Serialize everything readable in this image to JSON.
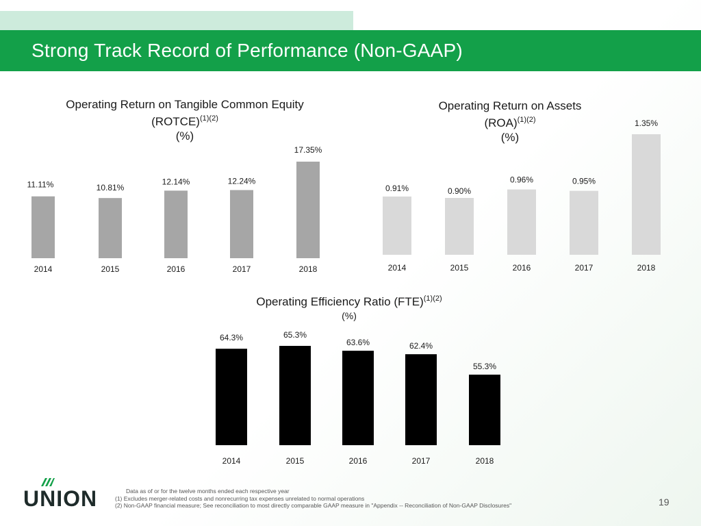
{
  "slide_title": "Strong Track Record of Performance (Non-GAAP)",
  "colors": {
    "title_bar": "#13a049",
    "rotce_bar": "#a6a6a6",
    "roa_bar": "#d9d9d9",
    "efficiency_bar": "#000000"
  },
  "chart_data": [
    {
      "type": "bar",
      "title_line1": "Operating Return on Tangible Common Equity",
      "title_line2": "(ROTCE)",
      "title_sup": "(1)(2)",
      "unit_label": "(%)",
      "categories": [
        "2014",
        "2015",
        "2016",
        "2017",
        "2018"
      ],
      "values": [
        11.11,
        10.81,
        12.14,
        12.24,
        17.35
      ],
      "value_labels": [
        "11.11%",
        "10.81%",
        "12.14%",
        "12.24%",
        "17.35%"
      ]
    },
    {
      "type": "bar",
      "title_line1": "Operating Return on Assets",
      "title_line2": "(ROA)",
      "title_sup": "(1)(2)",
      "unit_label": "(%)",
      "categories": [
        "2014",
        "2015",
        "2016",
        "2017",
        "2018"
      ],
      "values": [
        0.91,
        0.9,
        0.96,
        0.95,
        1.35
      ],
      "value_labels": [
        "0.91%",
        "0.90%",
        "0.96%",
        "0.95%",
        "1.35%"
      ]
    },
    {
      "type": "bar",
      "title_line1": "Operating Efficiency Ratio (FTE)",
      "title_sup": "(1)(2)",
      "unit_label": "(%)",
      "categories": [
        "2014",
        "2015",
        "2016",
        "2017",
        "2018"
      ],
      "values": [
        64.3,
        65.3,
        63.6,
        62.4,
        55.3
      ],
      "value_labels": [
        "64.3%",
        "65.3%",
        "63.6%",
        "62.4%",
        "55.3%"
      ]
    }
  ],
  "logo_text": "UNION",
  "footnotes": {
    "line1": "Data as of or for the twelve months ended each respective year",
    "line2": "(1) Excludes merger-related costs and nonrecurring tax expenses unrelated to normal operations",
    "line3": "(2) Non-GAAP financial measure; See reconciliation to most directly comparable GAAP measure in \"Appendix -- Reconciliation of Non-GAAP Disclosures\""
  },
  "page_number": "19"
}
